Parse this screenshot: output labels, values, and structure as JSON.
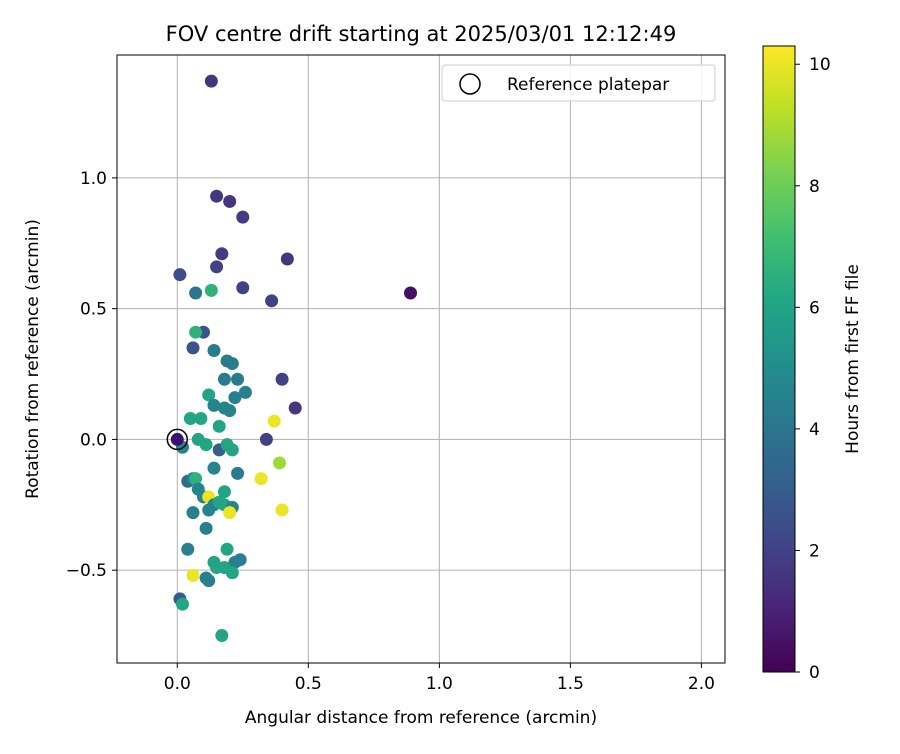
{
  "chart_data": {
    "type": "scatter",
    "title": "FOV centre drift starting at 2025/03/01 12:12:49",
    "xlabel": "Angular distance from reference (arcmin)",
    "ylabel": "Rotation from reference (arcmin)",
    "xlim": [
      -0.23,
      2.09
    ],
    "ylim": [
      -0.855,
      1.47
    ],
    "xticks": [
      0.0,
      0.5,
      1.0,
      1.5,
      2.0
    ],
    "xtick_labels": [
      "0.0",
      "0.5",
      "1.0",
      "1.5",
      "2.0"
    ],
    "yticks": [
      -0.5,
      0.0,
      0.5,
      1.0
    ],
    "ytick_labels": [
      "−0.5",
      "0.0",
      "0.5",
      "1.0"
    ],
    "grid": true,
    "legend": {
      "placement": "top-right",
      "entries": [
        "Reference platepar"
      ]
    },
    "reference_point": {
      "x": 0.0,
      "y": 0.0,
      "color": "#3b0f70"
    },
    "colorbar": {
      "label": "Hours from first FF file",
      "range": [
        0,
        10.3
      ],
      "ticks": [
        0,
        2,
        4,
        6,
        8,
        10
      ],
      "tick_labels": [
        "0",
        "2",
        "4",
        "6",
        "8",
        "10"
      ],
      "colormap": "viridis"
    },
    "points": [
      {
        "x": 0.89,
        "y": 0.56,
        "h": 0.4
      },
      {
        "x": 0.13,
        "y": 1.37,
        "h": 1.6
      },
      {
        "x": 0.15,
        "y": 0.93,
        "h": 1.6
      },
      {
        "x": 0.2,
        "y": 0.91,
        "h": 1.6
      },
      {
        "x": 0.25,
        "y": 0.85,
        "h": 1.8
      },
      {
        "x": 0.17,
        "y": 0.71,
        "h": 1.8
      },
      {
        "x": 0.42,
        "y": 0.69,
        "h": 1.6
      },
      {
        "x": 0.15,
        "y": 0.66,
        "h": 2.0
      },
      {
        "x": 0.01,
        "y": 0.63,
        "h": 2.4
      },
      {
        "x": 0.25,
        "y": 0.58,
        "h": 2.0
      },
      {
        "x": 0.36,
        "y": 0.53,
        "h": 2.0
      },
      {
        "x": 0.45,
        "y": 0.12,
        "h": 1.6
      },
      {
        "x": 0.4,
        "y": 0.23,
        "h": 2.0
      },
      {
        "x": 0.34,
        "y": 0.0,
        "h": 2.0
      },
      {
        "x": 0.06,
        "y": 0.35,
        "h": 2.6
      },
      {
        "x": 0.1,
        "y": 0.41,
        "h": 2.6
      },
      {
        "x": 0.07,
        "y": 0.56,
        "h": 4.0
      },
      {
        "x": 0.13,
        "y": 0.57,
        "h": 6.6
      },
      {
        "x": 0.07,
        "y": 0.41,
        "h": 6.6
      },
      {
        "x": 0.14,
        "y": 0.34,
        "h": 4.3
      },
      {
        "x": 0.19,
        "y": 0.3,
        "h": 4.3
      },
      {
        "x": 0.21,
        "y": 0.29,
        "h": 4.3
      },
      {
        "x": 0.18,
        "y": 0.23,
        "h": 4.3
      },
      {
        "x": 0.23,
        "y": 0.23,
        "h": 4.3
      },
      {
        "x": 0.26,
        "y": 0.18,
        "h": 4.4
      },
      {
        "x": 0.22,
        "y": 0.16,
        "h": 4.4
      },
      {
        "x": 0.12,
        "y": 0.17,
        "h": 6.0
      },
      {
        "x": 0.14,
        "y": 0.13,
        "h": 4.6
      },
      {
        "x": 0.18,
        "y": 0.12,
        "h": 4.6
      },
      {
        "x": 0.2,
        "y": 0.11,
        "h": 4.6
      },
      {
        "x": 0.09,
        "y": 0.08,
        "h": 6.0
      },
      {
        "x": 0.05,
        "y": 0.08,
        "h": 6.0
      },
      {
        "x": 0.16,
        "y": 0.05,
        "h": 6.0
      },
      {
        "x": 0.37,
        "y": 0.07,
        "h": 10.0
      },
      {
        "x": 0.02,
        "y": -0.03,
        "h": 4.6
      },
      {
        "x": 0.08,
        "y": 0.0,
        "h": 6.0
      },
      {
        "x": 0.11,
        "y": -0.02,
        "h": 6.0
      },
      {
        "x": 0.16,
        "y": -0.04,
        "h": 3.0
      },
      {
        "x": 0.19,
        "y": -0.02,
        "h": 6.0
      },
      {
        "x": 0.21,
        "y": -0.04,
        "h": 6.0
      },
      {
        "x": 0.14,
        "y": -0.11,
        "h": 4.6
      },
      {
        "x": 0.23,
        "y": -0.13,
        "h": 4.3
      },
      {
        "x": 0.39,
        "y": -0.09,
        "h": 8.8
      },
      {
        "x": 0.32,
        "y": -0.15,
        "h": 10.0
      },
      {
        "x": 0.04,
        "y": -0.16,
        "h": 3.6
      },
      {
        "x": 0.06,
        "y": -0.15,
        "h": 4.4
      },
      {
        "x": 0.07,
        "y": -0.15,
        "h": 6.6
      },
      {
        "x": 0.08,
        "y": -0.19,
        "h": 4.6
      },
      {
        "x": 0.1,
        "y": -0.22,
        "h": 4.6
      },
      {
        "x": 0.12,
        "y": -0.22,
        "h": 10.0
      },
      {
        "x": 0.14,
        "y": -0.25,
        "h": 4.6
      },
      {
        "x": 0.12,
        "y": -0.27,
        "h": 4.6
      },
      {
        "x": 0.16,
        "y": -0.24,
        "h": 6.0
      },
      {
        "x": 0.18,
        "y": -0.2,
        "h": 6.0
      },
      {
        "x": 0.18,
        "y": -0.25,
        "h": 6.0
      },
      {
        "x": 0.21,
        "y": -0.26,
        "h": 4.6
      },
      {
        "x": 0.2,
        "y": -0.28,
        "h": 10.0
      },
      {
        "x": 0.4,
        "y": -0.27,
        "h": 10.0
      },
      {
        "x": 0.06,
        "y": -0.28,
        "h": 4.4
      },
      {
        "x": 0.11,
        "y": -0.34,
        "h": 4.4
      },
      {
        "x": 0.04,
        "y": -0.42,
        "h": 4.4
      },
      {
        "x": 0.19,
        "y": -0.42,
        "h": 6.0
      },
      {
        "x": 0.24,
        "y": -0.46,
        "h": 4.4
      },
      {
        "x": 0.22,
        "y": -0.47,
        "h": 4.4
      },
      {
        "x": 0.14,
        "y": -0.47,
        "h": 6.0
      },
      {
        "x": 0.15,
        "y": -0.49,
        "h": 6.0
      },
      {
        "x": 0.18,
        "y": -0.49,
        "h": 6.0
      },
      {
        "x": 0.21,
        "y": -0.51,
        "h": 6.0
      },
      {
        "x": 0.11,
        "y": -0.53,
        "h": 4.4
      },
      {
        "x": 0.12,
        "y": -0.54,
        "h": 4.4
      },
      {
        "x": 0.06,
        "y": -0.52,
        "h": 10.0
      },
      {
        "x": 0.01,
        "y": -0.61,
        "h": 3.0
      },
      {
        "x": 0.02,
        "y": -0.63,
        "h": 6.0
      },
      {
        "x": 0.17,
        "y": -0.75,
        "h": 6.0
      }
    ]
  }
}
